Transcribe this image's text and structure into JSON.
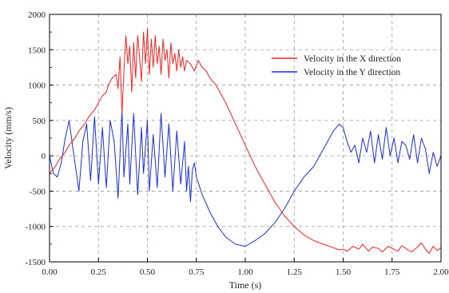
{
  "chart_data": {
    "type": "line",
    "xlabel": "Time (s)",
    "ylabel": "Velocity (mm/s)",
    "xlim": [
      0,
      2.0
    ],
    "ylim": [
      -1500,
      2000
    ],
    "x_ticks": [
      "0.00",
      "0.25",
      "0.50",
      "0.75",
      "1.00",
      "1.25",
      "1.50",
      "1.75",
      "2.00"
    ],
    "y_ticks": [
      "-1500",
      "-1000",
      "-500",
      "0",
      "500",
      "1000",
      "1500",
      "2000"
    ],
    "grid": true,
    "legend_position": "top-right",
    "series": [
      {
        "name": "Velocity in the X direction",
        "color": "#ff2020",
        "x": [
          0.0,
          0.03,
          0.05,
          0.08,
          0.1,
          0.13,
          0.15,
          0.18,
          0.2,
          0.23,
          0.25,
          0.27,
          0.29,
          0.3,
          0.32,
          0.34,
          0.35,
          0.36,
          0.37,
          0.38,
          0.39,
          0.4,
          0.41,
          0.42,
          0.43,
          0.44,
          0.45,
          0.46,
          0.47,
          0.48,
          0.49,
          0.5,
          0.51,
          0.52,
          0.53,
          0.54,
          0.55,
          0.56,
          0.57,
          0.58,
          0.59,
          0.6,
          0.61,
          0.62,
          0.63,
          0.64,
          0.65,
          0.66,
          0.67,
          0.68,
          0.69,
          0.7,
          0.72,
          0.74,
          0.76,
          0.78,
          0.8,
          0.82,
          0.85,
          0.9,
          0.95,
          1.0,
          1.05,
          1.1,
          1.15,
          1.2,
          1.25,
          1.3,
          1.35,
          1.4,
          1.45,
          1.48,
          1.5,
          1.52,
          1.55,
          1.58,
          1.6,
          1.63,
          1.65,
          1.68,
          1.7,
          1.73,
          1.75,
          1.78,
          1.8,
          1.83,
          1.85,
          1.88,
          1.9,
          1.92,
          1.94,
          1.96,
          1.98,
          2.0
        ],
        "y": [
          -250,
          -150,
          -50,
          50,
          150,
          250,
          350,
          450,
          550,
          650,
          750,
          850,
          900,
          1000,
          1100,
          1150,
          950,
          1400,
          600,
          1200,
          1700,
          1300,
          1550,
          900,
          1600,
          1100,
          1700,
          1400,
          1050,
          1750,
          1300,
          1800,
          1150,
          1650,
          1250,
          1700,
          1300,
          1550,
          1150,
          1650,
          1350,
          1500,
          1100,
          1600,
          1300,
          1450,
          1200,
          1500,
          1250,
          1400,
          1200,
          1350,
          1300,
          1200,
          1350,
          1250,
          1200,
          1100,
          1000,
          750,
          450,
          150,
          -150,
          -400,
          -650,
          -850,
          -1000,
          -1120,
          -1200,
          -1250,
          -1300,
          -1330,
          -1320,
          -1350,
          -1280,
          -1320,
          -1250,
          -1350,
          -1290,
          -1310,
          -1360,
          -1280,
          -1310,
          -1350,
          -1270,
          -1330,
          -1360,
          -1290,
          -1230,
          -1320,
          -1380,
          -1280,
          -1340,
          -1300
        ]
      },
      {
        "name": "Velocity in the Y direction",
        "color": "#1a2ee6",
        "x": [
          0.0,
          0.02,
          0.04,
          0.06,
          0.08,
          0.1,
          0.12,
          0.14,
          0.15,
          0.17,
          0.19,
          0.21,
          0.23,
          0.25,
          0.27,
          0.29,
          0.31,
          0.33,
          0.35,
          0.37,
          0.38,
          0.4,
          0.41,
          0.43,
          0.45,
          0.47,
          0.48,
          0.5,
          0.51,
          0.53,
          0.55,
          0.57,
          0.59,
          0.61,
          0.63,
          0.65,
          0.67,
          0.69,
          0.7,
          0.71,
          0.72,
          0.73,
          0.74,
          0.75,
          0.78,
          0.82,
          0.86,
          0.9,
          0.95,
          1.0,
          1.05,
          1.1,
          1.15,
          1.2,
          1.25,
          1.3,
          1.35,
          1.4,
          1.45,
          1.48,
          1.5,
          1.52,
          1.54,
          1.56,
          1.58,
          1.6,
          1.62,
          1.64,
          1.66,
          1.68,
          1.7,
          1.72,
          1.74,
          1.76,
          1.78,
          1.8,
          1.82,
          1.84,
          1.86,
          1.88,
          1.9,
          1.92,
          1.94,
          1.96,
          1.98,
          2.0
        ],
        "y": [
          0,
          -250,
          -300,
          -100,
          250,
          500,
          100,
          -300,
          -500,
          200,
          450,
          -350,
          550,
          -400,
          400,
          -450,
          500,
          200,
          -600,
          650,
          -300,
          450,
          -400,
          600,
          -550,
          400,
          -250,
          500,
          -500,
          300,
          -450,
          600,
          -300,
          450,
          -500,
          350,
          -400,
          200,
          -500,
          -150,
          -650,
          -200,
          -100,
          -300,
          -550,
          -800,
          -1000,
          -1150,
          -1250,
          -1280,
          -1200,
          -1100,
          -950,
          -750,
          -500,
          -300,
          -150,
          100,
          350,
          450,
          400,
          200,
          50,
          150,
          -100,
          250,
          50,
          350,
          -100,
          300,
          -50,
          400,
          0,
          250,
          -100,
          200,
          150,
          -50,
          300,
          -100,
          250,
          100,
          -250,
          50,
          -150,
          0
        ]
      }
    ]
  }
}
